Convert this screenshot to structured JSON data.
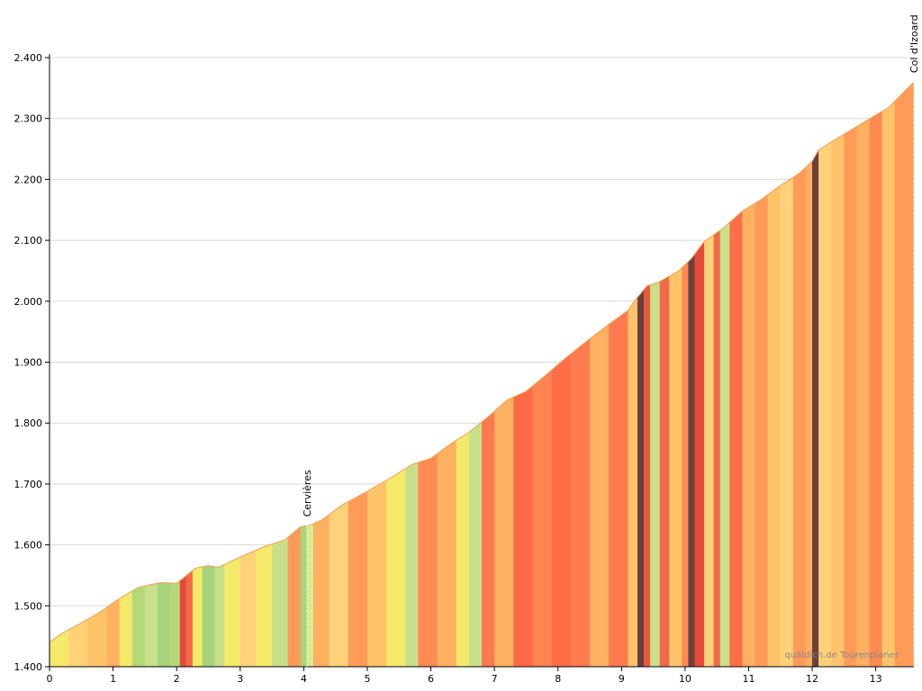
{
  "chart_data": {
    "type": "area",
    "title": "",
    "xlabel": "",
    "ylabel": "",
    "xlim": [
      0,
      13.6
    ],
    "ylim": [
      1400,
      2420
    ],
    "grid": true,
    "x_ticks": [
      0,
      1,
      2,
      3,
      4,
      5,
      6,
      7,
      8,
      9,
      10,
      11,
      12,
      13
    ],
    "x_tick_labels": [
      "0",
      "1",
      "2",
      "3",
      "4",
      "5",
      "6",
      "7",
      "8",
      "9",
      "10",
      "11",
      "12",
      "13"
    ],
    "y_ticks": [
      1400,
      1500,
      1600,
      1700,
      1800,
      1900,
      2000,
      2100,
      2200,
      2300,
      2400
    ],
    "y_tick_labels": [
      "1.400",
      "1.500",
      "1.600",
      "1.700",
      "1.800",
      "1.900",
      "2.000",
      "2.100",
      "2.200",
      "2.300",
      "2.400"
    ],
    "profile": {
      "distance_km": [
        0,
        0.2,
        0.5,
        0.8,
        1.0,
        1.2,
        1.4,
        1.6,
        1.75,
        2.0,
        2.1,
        2.3,
        2.5,
        2.65,
        2.8,
        3.0,
        3.4,
        3.7,
        3.95,
        4.1,
        4.3,
        4.6,
        5.0,
        5.4,
        5.7,
        6.0,
        6.3,
        6.6,
        6.9,
        7.2,
        7.5,
        7.8,
        8.1,
        8.4,
        8.8,
        9.1,
        9.2,
        9.4,
        9.6,
        9.9,
        10.1,
        10.3,
        10.6,
        10.9,
        11.2,
        11.5,
        11.8,
        12.0,
        12.1,
        12.4,
        12.8,
        13.2,
        13.6
      ],
      "elevation_m": [
        1440,
        1455,
        1472,
        1490,
        1505,
        1518,
        1530,
        1535,
        1538,
        1537,
        1545,
        1562,
        1566,
        1563,
        1570,
        1580,
        1598,
        1608,
        1630,
        1632,
        1642,
        1665,
        1688,
        1712,
        1732,
        1742,
        1765,
        1785,
        1810,
        1838,
        1852,
        1878,
        1905,
        1930,
        1962,
        1985,
        2000,
        2025,
        2032,
        2050,
        2070,
        2098,
        2120,
        2148,
        2167,
        2190,
        2210,
        2230,
        2248,
        2268,
        2293,
        2318,
        2360
      ]
    },
    "gradient_bands": {
      "bounds_km": [
        0,
        0.3,
        0.6,
        0.9,
        1.1,
        1.3,
        1.5,
        1.7,
        1.9,
        2.05,
        2.15,
        2.25,
        2.4,
        2.6,
        2.75,
        3.0,
        3.25,
        3.5,
        3.75,
        3.95,
        4.05,
        4.15,
        4.4,
        4.7,
        5.0,
        5.3,
        5.6,
        5.8,
        6.1,
        6.4,
        6.6,
        6.8,
        7.0,
        7.3,
        7.6,
        7.9,
        8.2,
        8.5,
        8.8,
        9.1,
        9.25,
        9.35,
        9.45,
        9.6,
        9.75,
        9.95,
        10.05,
        10.15,
        10.3,
        10.45,
        10.55,
        10.7,
        10.9,
        11.1,
        11.3,
        11.5,
        11.7,
        11.9,
        12.0,
        12.1,
        12.3,
        12.5,
        12.7,
        12.9,
        13.1,
        13.3,
        13.6
      ],
      "colors": [
        "#f5e96a",
        "#ffd27a",
        "#ffc46a",
        "#ffb060",
        "#f5e96a",
        "#b5d878",
        "#c9e08a",
        "#a7d47a",
        "#b5d878",
        "#e84a3a",
        "#f26a4a",
        "#f5e96a",
        "#a7d47a",
        "#c9e08a",
        "#f5e96a",
        "#ffd27a",
        "#f5e96a",
        "#c9e08a",
        "#ff9a58",
        "#a7d47a",
        "#dcea90",
        "#ffb060",
        "#ffd27a",
        "#ff9a58",
        "#ffc46a",
        "#f5e96a",
        "#c9e08a",
        "#ff8a52",
        "#ffb060",
        "#f5e96a",
        "#c9e08a",
        "#ff7a4e",
        "#ffb060",
        "#ff6a46",
        "#ff8452",
        "#ff6e48",
        "#ff7c50",
        "#ffb060",
        "#ff7a4e",
        "#ffc46a",
        "#6b3f3e",
        "#e85a3e",
        "#c9e08a",
        "#f26a4a",
        "#ffc46a",
        "#ff8a52",
        "#6b3f3e",
        "#e84a3a",
        "#ffd27a",
        "#f26a4a",
        "#c9e08a",
        "#ff6e48",
        "#ffb060",
        "#ff9a58",
        "#ffc46a",
        "#ffd27a",
        "#ff9a58",
        "#ffb060",
        "#6b3f3e",
        "#ffd27a",
        "#ffc46a",
        "#ff9a58",
        "#ffb060",
        "#ff8a52",
        "#ffc46a",
        "#ff9a58"
      ]
    },
    "annotations": [
      {
        "x": 4.05,
        "label": "Cervières"
      },
      {
        "x": 13.6,
        "label": "Col d'Izoard"
      }
    ],
    "watermark": "quäldich.de Tourenplaner"
  },
  "colors": {
    "axis": "#000000",
    "grid": "#d8d8d8",
    "background": "#ffffff"
  }
}
